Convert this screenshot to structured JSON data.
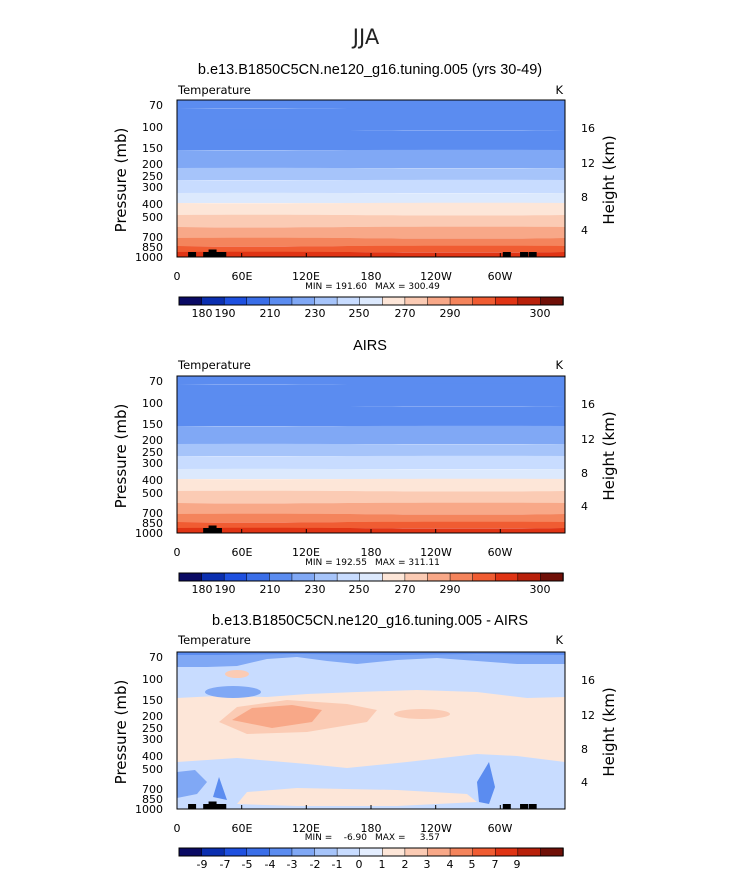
{
  "figure_title": "JJA",
  "chart_data": [
    {
      "type": "heatmap",
      "title": "b.e13.B1850C5CN.ne120_g16.tuning.005 (yrs 30-49)",
      "field_label": "Temperature",
      "units": "K",
      "ylabel": "Pressure (mb)",
      "y2label": "Height (km)",
      "x_ticks": [
        "0",
        "60E",
        "120E",
        "180",
        "120W",
        "60W"
      ],
      "y_ticks": [
        "70",
        "100",
        "150",
        "200",
        "250",
        "300",
        "400",
        "500",
        "700",
        "850",
        "1000"
      ],
      "y2_ticks": [
        "16",
        "12",
        "8",
        "4"
      ],
      "min_label": "MIN = 191.60",
      "max_label": "MAX = 300.49",
      "colorbar_labels": [
        "180",
        "190",
        "210",
        "230",
        "250",
        "270",
        "290",
        "300"
      ],
      "colors": [
        "#0a0a64",
        "#0b2fb0",
        "#1e50e0",
        "#3a6ee8",
        "#5b8cf0",
        "#80a8f5",
        "#a6c4fa",
        "#c8dcff",
        "#dce9fd",
        "#fde6d8",
        "#fbcbb4",
        "#f8a888",
        "#f4845c",
        "#f05c32",
        "#e03414",
        "#b8200a",
        "#701008"
      ],
      "band_classes": [
        4,
        4,
        4,
        5,
        6,
        7,
        8,
        9,
        10,
        11,
        12,
        13,
        14
      ],
      "terrain_left": [
        [
          14,
          2
        ],
        [
          28,
          2
        ],
        [
          33,
          3
        ],
        [
          38,
          2
        ],
        [
          42,
          2
        ]
      ],
      "terrain_right": [
        [
          306,
          2
        ],
        [
          322,
          2
        ],
        [
          330,
          2
        ]
      ]
    },
    {
      "type": "heatmap",
      "title": "AIRS",
      "field_label": "Temperature",
      "units": "K",
      "ylabel": "Pressure (mb)",
      "y2label": "Height (km)",
      "x_ticks": [
        "0",
        "60E",
        "120E",
        "180",
        "120W",
        "60W"
      ],
      "y_ticks": [
        "70",
        "100",
        "150",
        "200",
        "250",
        "300",
        "400",
        "500",
        "700",
        "850",
        "1000"
      ],
      "y2_ticks": [
        "16",
        "12",
        "8",
        "4"
      ],
      "min_label": "MIN = 192.55",
      "max_label": "MAX = 311.11",
      "colorbar_labels": [
        "180",
        "190",
        "210",
        "230",
        "250",
        "270",
        "290",
        "300"
      ],
      "colors": [
        "#0a0a64",
        "#0b2fb0",
        "#1e50e0",
        "#3a6ee8",
        "#5b8cf0",
        "#80a8f5",
        "#a6c4fa",
        "#c8dcff",
        "#dce9fd",
        "#fde6d8",
        "#fbcbb4",
        "#f8a888",
        "#f4845c",
        "#f05c32",
        "#e03414",
        "#b8200a",
        "#701008"
      ],
      "band_classes": [
        4,
        4,
        4,
        5,
        6,
        7,
        8,
        9,
        10,
        11,
        12,
        13,
        14
      ],
      "terrain_left": [
        [
          28,
          2
        ],
        [
          33,
          3
        ],
        [
          38,
          2
        ]
      ],
      "terrain_right": []
    },
    {
      "type": "heatmap",
      "title": "b.e13.B1850C5CN.ne120_g16.tuning.005 - AIRS",
      "field_label": "Temperature",
      "units": "K",
      "ylabel": "Pressure (mb)",
      "y2label": "Height (km)",
      "x_ticks": [
        "0",
        "60E",
        "120E",
        "180",
        "120W",
        "60W"
      ],
      "y_ticks": [
        "70",
        "100",
        "150",
        "200",
        "250",
        "300",
        "400",
        "500",
        "700",
        "850",
        "1000"
      ],
      "y2_ticks": [
        "16",
        "12",
        "8",
        "4"
      ],
      "min_label": "MIN =    -6.90",
      "max_label": "MAX =     3.57",
      "colorbar_labels": [
        "-9",
        "-7",
        "-5",
        "-4",
        "-3",
        "-2",
        "-1",
        "0",
        "1",
        "2",
        "3",
        "4",
        "5",
        "7",
        "9"
      ],
      "colors": [
        "#0a0a64",
        "#0b2fb0",
        "#1e50e0",
        "#3a6ee8",
        "#5b8cf0",
        "#80a8f5",
        "#a6c4fa",
        "#c8dcff",
        "#e4eeff",
        "#fde6d8",
        "#fbcbb4",
        "#f8a888",
        "#f4845c",
        "#f05c32",
        "#e03414",
        "#b8200a",
        "#701008"
      ],
      "band_classes": [],
      "terrain_left": [
        [
          14,
          2
        ],
        [
          28,
          2
        ],
        [
          33,
          3
        ],
        [
          38,
          2
        ],
        [
          42,
          2
        ]
      ],
      "terrain_right": [
        [
          306,
          2
        ],
        [
          322,
          2
        ],
        [
          330,
          2
        ]
      ]
    }
  ]
}
